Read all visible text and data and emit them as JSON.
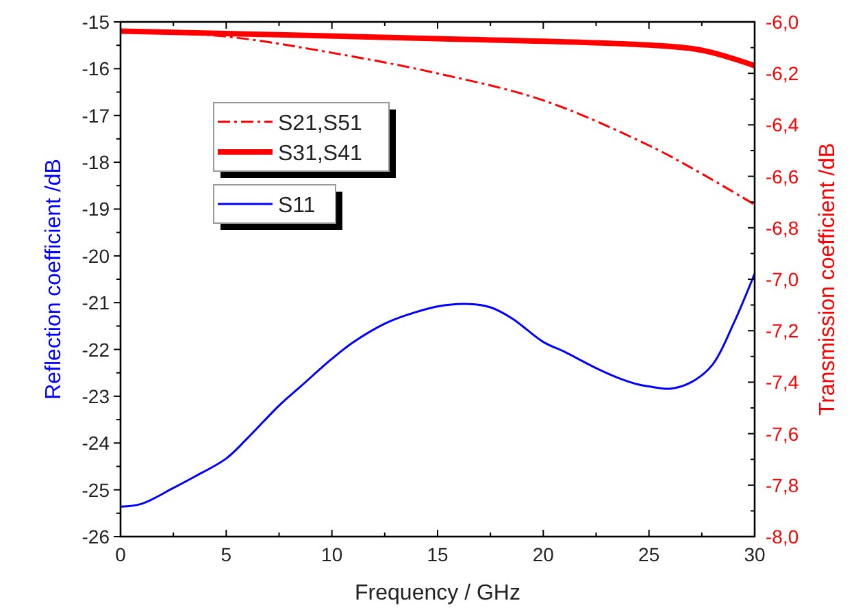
{
  "chart_data": {
    "type": "line",
    "xlabel": "Frequency / GHz",
    "ylabel": "Reflection coefficient /dB",
    "y2label": "Transmission coefficient /dB",
    "x": [
      0,
      1,
      2.5,
      3.5,
      5,
      6,
      7.5,
      8.5,
      10,
      11,
      12.5,
      13.5,
      15,
      16.5,
      17.5,
      18.5,
      20,
      21,
      22.5,
      23.5,
      24.5,
      25,
      26,
      27,
      28,
      29,
      30
    ],
    "series": [
      {
        "name": "S21,S51",
        "color": "#ff0000",
        "axis": "y2",
        "line_style": "dashed",
        "x": [
          0,
          5,
          10,
          15,
          20,
          25,
          27.5,
          30
        ],
        "values": [
          -6.035,
          -6.057,
          -6.12,
          -6.2,
          -6.305,
          -6.48,
          -6.59,
          -6.71
        ]
      },
      {
        "name": "S31,S41",
        "color": "#ff0000",
        "axis": "y2",
        "line_style": "solid",
        "x": [
          0,
          15,
          25,
          27.5,
          30
        ],
        "values": [
          -6.036,
          -6.065,
          -6.09,
          -6.11,
          -6.17
        ]
      },
      {
        "name": "S11",
        "color": "#0000ff",
        "line_style": "solid",
        "values": [
          -25.36,
          -25.3,
          -24.96,
          -24.72,
          -24.33,
          -23.9,
          -23.2,
          -22.8,
          -22.2,
          -21.85,
          -21.45,
          -21.27,
          -21.08,
          -21.03,
          -21.1,
          -21.33,
          -21.84,
          -22.05,
          -22.4,
          -22.6,
          -22.75,
          -22.79,
          -22.84,
          -22.7,
          -22.33,
          -21.45,
          -20.38
        ]
      }
    ],
    "xlim": [
      0,
      30
    ],
    "xticks": [
      0,
      {
        "value": 2.5,
        "label": null
      },
      5,
      {
        "value": 7.5,
        "label": null
      },
      10,
      {
        "value": 12.5,
        "label": null
      },
      15,
      {
        "value": 17.5,
        "label": null
      },
      20,
      {
        "value": 22.5,
        "label": null
      },
      25,
      {
        "value": 27.5,
        "label": null
      },
      30
    ],
    "ylim": [
      -26,
      -15
    ],
    "yticks": [
      -26,
      {
        "value": -25.5,
        "label": null
      },
      -25,
      {
        "value": -24.5,
        "label": null
      },
      -24,
      {
        "value": -23.5,
        "label": null
      },
      -23,
      {
        "value": -22.5,
        "label": null
      },
      -22,
      {
        "value": -21.5,
        "label": null
      },
      -21,
      {
        "value": -20.5,
        "label": null
      },
      -20,
      {
        "value": -19.5,
        "label": null
      },
      -19,
      {
        "value": -18.5,
        "label": null
      },
      -18,
      {
        "value": -17.5,
        "label": null
      },
      -17,
      {
        "value": -16.5,
        "label": null
      },
      -16,
      {
        "value": -15.5,
        "label": null
      },
      -15
    ],
    "y2lim": [
      -8,
      -6
    ],
    "y2ticks": [
      {
        "value": -8,
        "label": "-8,0"
      },
      {
        "value": -7.9,
        "label": null
      },
      {
        "value": -7.8,
        "label": "-7,8"
      },
      {
        "value": -7.7,
        "label": null
      },
      {
        "value": -7.6,
        "label": "-7,6"
      },
      {
        "value": -7.5,
        "label": null
      },
      {
        "value": -7.4,
        "label": "-7,4"
      },
      {
        "value": -7.3,
        "label": null
      },
      {
        "value": -7.2,
        "label": "-7,2"
      },
      {
        "value": -7.1,
        "label": null
      },
      {
        "value": -7,
        "label": "-7,0"
      },
      {
        "value": -6.9,
        "label": null
      },
      {
        "value": -6.8,
        "label": "-6,8"
      },
      {
        "value": -6.7,
        "label": null
      },
      {
        "value": -6.6,
        "label": "-6,6"
      },
      {
        "value": -6.5,
        "label": null
      },
      {
        "value": -6.4,
        "label": "-6,4"
      },
      {
        "value": -6.3,
        "label": null
      },
      {
        "value": -6.2,
        "label": "-6,2"
      },
      {
        "value": -6.1,
        "label": null
      },
      {
        "value": -6,
        "label": "-6,0"
      }
    ],
    "legend": "top left"
  }
}
